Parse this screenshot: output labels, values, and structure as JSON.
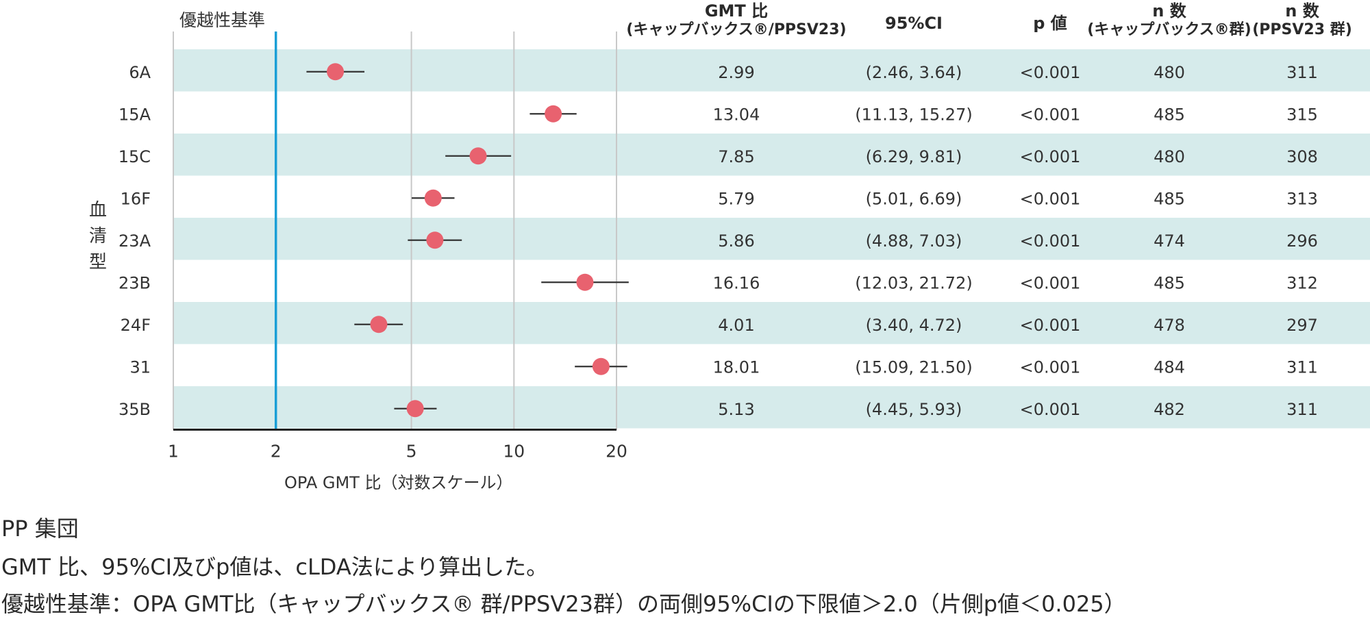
{
  "chart_data": {
    "type": "forest",
    "criterion_label": "優越性基準",
    "criterion_value": 2,
    "xlabel": "OPA GMT 比（対数スケール）",
    "ylabel": "血清型",
    "x_scale": "log",
    "x_ticks": [
      1,
      2,
      5,
      10,
      20
    ],
    "xlim": [
      1,
      20
    ],
    "columns": {
      "ratio": [
        "GMT 比",
        "(キャップバックス®/PPSV23)"
      ],
      "ci": [
        "95%CI"
      ],
      "p": [
        "p 値"
      ],
      "n_cap": [
        "n 数",
        "(キャップバックス®群)"
      ],
      "n_ppsv": [
        "n 数",
        "(PPSV23 群)"
      ]
    },
    "rows": [
      {
        "serotype": "6A",
        "gmt": 2.99,
        "lo": 2.46,
        "hi": 3.64,
        "gmt_text": "2.99",
        "ci_text": "(2.46, 3.64)",
        "p": "<0.001",
        "n_cap": "480",
        "n_ppsv": "311"
      },
      {
        "serotype": "15A",
        "gmt": 13.04,
        "lo": 11.13,
        "hi": 15.27,
        "gmt_text": "13.04",
        "ci_text": "(11.13, 15.27)",
        "p": "<0.001",
        "n_cap": "485",
        "n_ppsv": "315"
      },
      {
        "serotype": "15C",
        "gmt": 7.85,
        "lo": 6.29,
        "hi": 9.81,
        "gmt_text": "7.85",
        "ci_text": "(6.29, 9.81)",
        "p": "<0.001",
        "n_cap": "480",
        "n_ppsv": "308"
      },
      {
        "serotype": "16F",
        "gmt": 5.79,
        "lo": 5.01,
        "hi": 6.69,
        "gmt_text": "5.79",
        "ci_text": "(5.01, 6.69)",
        "p": "<0.001",
        "n_cap": "485",
        "n_ppsv": "313"
      },
      {
        "serotype": "23A",
        "gmt": 5.86,
        "lo": 4.88,
        "hi": 7.03,
        "gmt_text": "5.86",
        "ci_text": "(4.88, 7.03)",
        "p": "<0.001",
        "n_cap": "474",
        "n_ppsv": "296"
      },
      {
        "serotype": "23B",
        "gmt": 16.16,
        "lo": 12.03,
        "hi": 21.72,
        "gmt_text": "16.16",
        "ci_text": "(12.03, 21.72)",
        "p": "<0.001",
        "n_cap": "485",
        "n_ppsv": "312"
      },
      {
        "serotype": "24F",
        "gmt": 4.01,
        "lo": 3.4,
        "hi": 4.72,
        "gmt_text": "4.01",
        "ci_text": "(3.40, 4.72)",
        "p": "<0.001",
        "n_cap": "478",
        "n_ppsv": "297"
      },
      {
        "serotype": "31",
        "gmt": 18.01,
        "lo": 15.09,
        "hi": 21.5,
        "gmt_text": "18.01",
        "ci_text": "(15.09, 21.50)",
        "p": "<0.001",
        "n_cap": "484",
        "n_ppsv": "311"
      },
      {
        "serotype": "35B",
        "gmt": 5.13,
        "lo": 4.45,
        "hi": 5.93,
        "gmt_text": "5.13",
        "ci_text": "(4.45, 5.93)",
        "p": "<0.001",
        "n_cap": "482",
        "n_ppsv": "311"
      }
    ],
    "colors": {
      "band": "#d6ebeb",
      "marker": "#e8626f",
      "criterion_line": "#1a9fd6",
      "grid": "#c8c8c8",
      "ci_line": "#333333"
    }
  },
  "footnotes": {
    "population": "PP 集団",
    "method": "GMT 比、95%CI及びp値は、cLDA法により算出した。",
    "criterion": "優越性基準：OPA GMT比（キャップバックス® 群/PPSV23群）の両側95%CIの下限値＞2.0（片側p値＜0.025）"
  }
}
